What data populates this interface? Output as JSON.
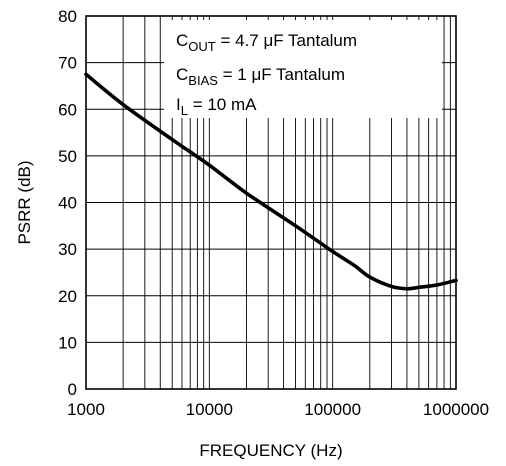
{
  "chart_data": {
    "type": "line",
    "xlabel": "FREQUENCY (Hz)",
    "ylabel": "PSRR (dB)",
    "x_scale": "log",
    "xlim": [
      1000,
      1000000
    ],
    "ylim": [
      0,
      80
    ],
    "grid": true,
    "x_ticks": [
      "1000",
      "10000",
      "100000",
      "1000000"
    ],
    "y_ticks": [
      "0",
      "10",
      "20",
      "30",
      "40",
      "50",
      "60",
      "70",
      "80"
    ],
    "annotations": [
      {
        "main": "C",
        "sub": "OUT",
        "rest": " = 4.7 μF Tantalum"
      },
      {
        "main": "C",
        "sub": "BIAS",
        "rest": " = 1 μF Tantalum"
      },
      {
        "main": "I",
        "sub": "L",
        "rest": " = 10 mA"
      }
    ],
    "series": [
      {
        "color": "#000000",
        "x": [
          1000,
          2000,
          5000,
          10000,
          20000,
          50000,
          100000,
          150000,
          200000,
          300000,
          400000,
          500000,
          700000,
          1000000
        ],
        "y": [
          67.5,
          61,
          53.5,
          48,
          42,
          35,
          29.5,
          26.5,
          24,
          22,
          21.5,
          21.8,
          22.3,
          23.3
        ]
      }
    ]
  }
}
